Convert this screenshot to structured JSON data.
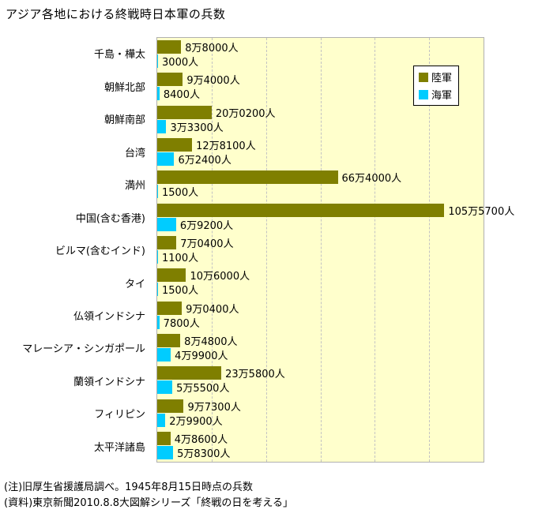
{
  "title": "アジア各地における終戦時日本軍の兵数",
  "legend": {
    "army_label": "陸軍",
    "navy_label": "海軍"
  },
  "notes": {
    "line1": "(注)旧厚生省援護局調べ。1945年8月15日時点の兵数",
    "line2": "(資料)東京新聞2010.8.8大図解シリーズ「終戦の日を考える」"
  },
  "colors": {
    "army": "#7f7f00",
    "navy": "#00ccff",
    "plot_bg": "#ffffcc",
    "plot_border": "#b0b0b0",
    "gridline": "#c3c3c3"
  },
  "chart_data": {
    "type": "bar",
    "orientation": "horizontal",
    "title": "アジア各地における終戦時日本軍の兵数",
    "categories": [
      "千島・樺太",
      "朝鮮北部",
      "朝鮮南部",
      "台湾",
      "満州",
      "中国(含む香港)",
      "ビルマ(含むインド)",
      "タイ",
      "仏領インドシナ",
      "マレーシア・シンガポール",
      "蘭領インドシナ",
      "フィリピン",
      "太平洋諸島"
    ],
    "series": [
      {
        "name": "陸軍",
        "color_key": "army",
        "values": [
          88000,
          94000,
          200200,
          128100,
          664000,
          1055700,
          70400,
          106000,
          90400,
          84800,
          235800,
          97300,
          48600
        ],
        "labels": [
          "8万8000人",
          "9万4000人",
          "20万0200人",
          "12万8100人",
          "66万4000人",
          "105万5700人",
          "7万0400人",
          "10万6000人",
          "9万0400人",
          "8万4800人",
          "23万5800人",
          "9万7300人",
          "4万8600人"
        ]
      },
      {
        "name": "海軍",
        "color_key": "navy",
        "values": [
          3000,
          8400,
          33300,
          62400,
          1500,
          69200,
          1100,
          1500,
          7800,
          49900,
          55500,
          29900,
          58300
        ],
        "labels": [
          "3000人",
          "8400人",
          "3万3300人",
          "6万2400人",
          "1500人",
          "6万9200人",
          "1100人",
          "1500人",
          "7800人",
          "4万9900人",
          "5万5500人",
          "2万9900人",
          "5万8300人"
        ]
      }
    ],
    "xlim": [
      0,
      1200000
    ],
    "grid_interval": 200000,
    "grid": true,
    "legend_position": "top-right",
    "note1": "(注)旧厚生省援護局調べ。1945年8月15日時点の兵数",
    "note2": "(資料)東京新聞2010.8.8大図解シリーズ「終戦の日を考える」"
  }
}
